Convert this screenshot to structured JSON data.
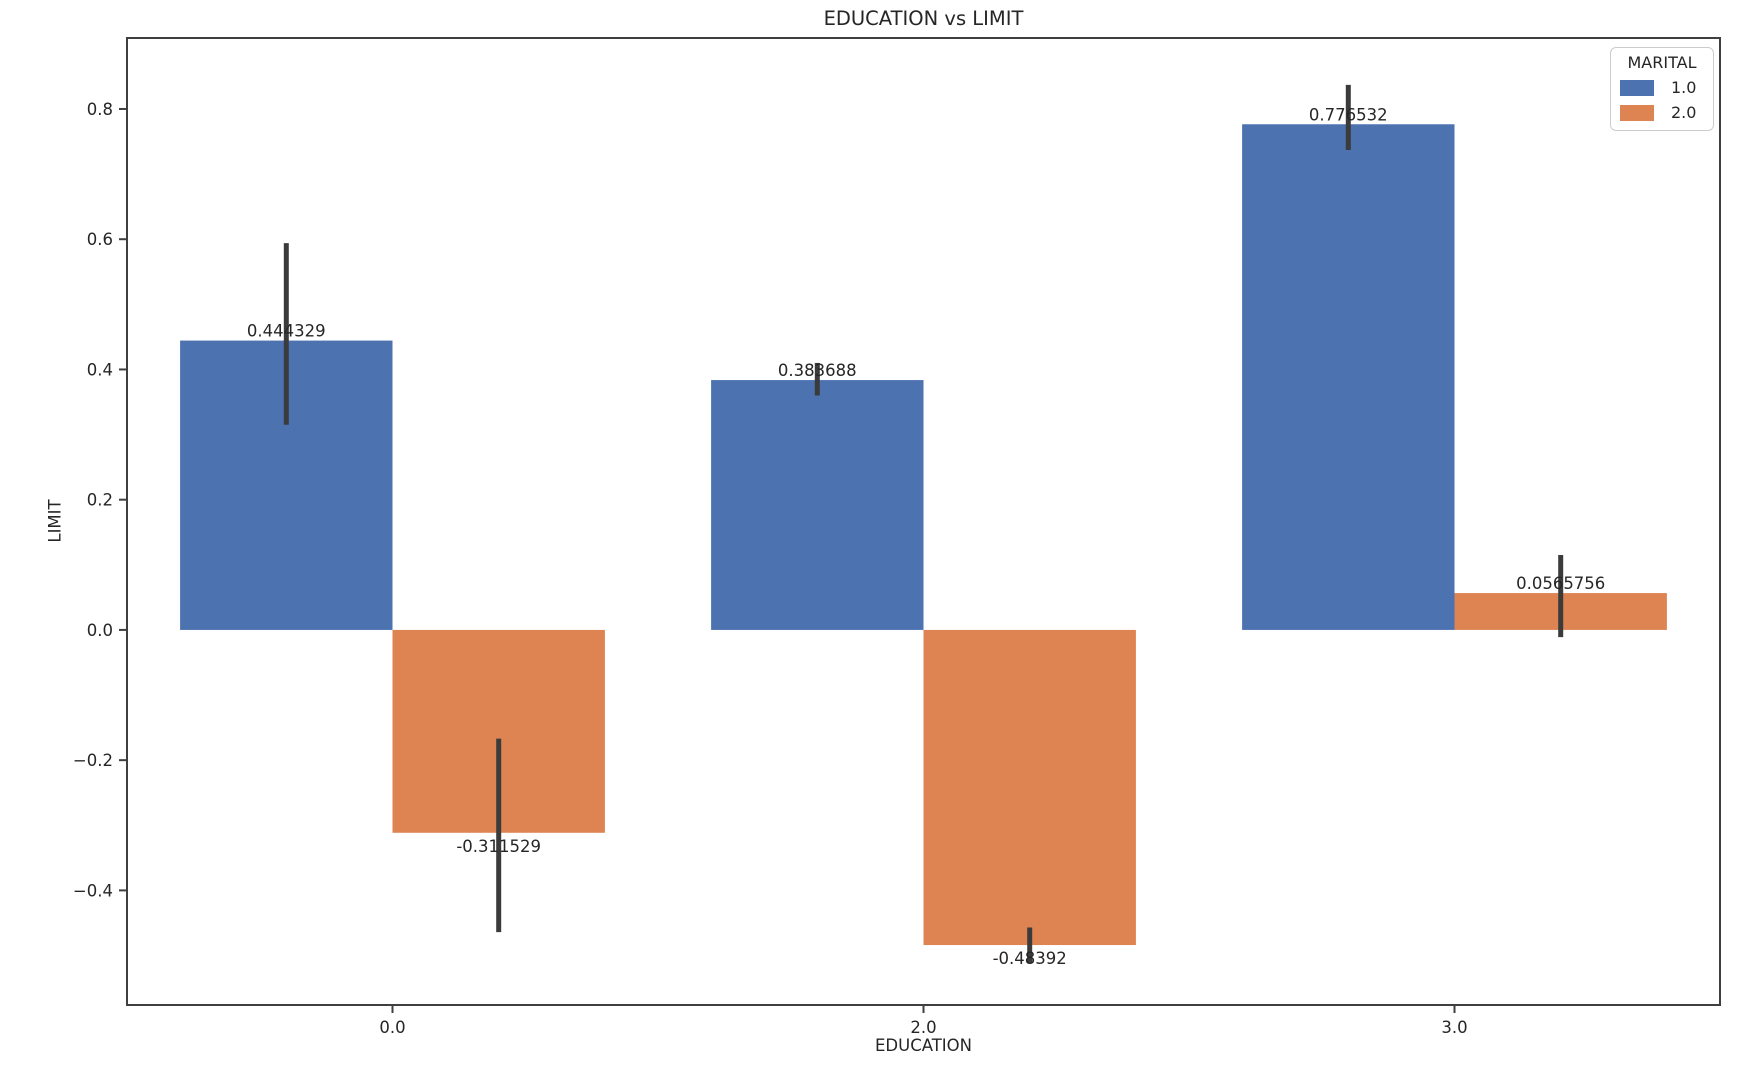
{
  "chart_data": {
    "type": "bar",
    "title": "EDUCATION vs LIMIT",
    "xlabel": "EDUCATION",
    "ylabel": "LIMIT",
    "categories": [
      "0.0",
      "2.0",
      "3.0"
    ],
    "series": [
      {
        "name": "1.0",
        "color": "#4C72B0",
        "values": [
          0.444329,
          0.383688,
          0.776532
        ],
        "value_labels": [
          "0.444329",
          "0.383688",
          "0.776532"
        ],
        "error_intervals": [
          [
            0.315,
            0.594
          ],
          [
            0.36,
            0.41
          ],
          [
            0.737,
            0.837
          ]
        ]
      },
      {
        "name": "2.0",
        "color": "#DD8452",
        "values": [
          -0.311529,
          -0.48392,
          0.0565756
        ],
        "value_labels": [
          "-0.311529",
          "-0.48392",
          "0.0565756"
        ],
        "error_intervals": [
          [
            -0.464,
            -0.167
          ],
          [
            -0.511,
            -0.457
          ],
          [
            -0.011,
            0.115
          ]
        ]
      }
    ],
    "ylim": [
      -0.576,
      0.909
    ],
    "ytick_values": [
      0.8,
      0.6,
      0.4,
      0.2,
      0.0,
      -0.2,
      -0.4
    ],
    "ytick_labels": [
      "0.8",
      "0.6",
      "0.4",
      "0.2",
      "0.0",
      "−0.2",
      "−0.4"
    ],
    "legend": {
      "title": "MARITAL",
      "position": "upper right"
    },
    "bar_width_fraction": 0.4,
    "grid": false,
    "error_bar_color": "#3b3b3b",
    "axis_color": "#3f3f3f",
    "text_color": "#262626"
  }
}
